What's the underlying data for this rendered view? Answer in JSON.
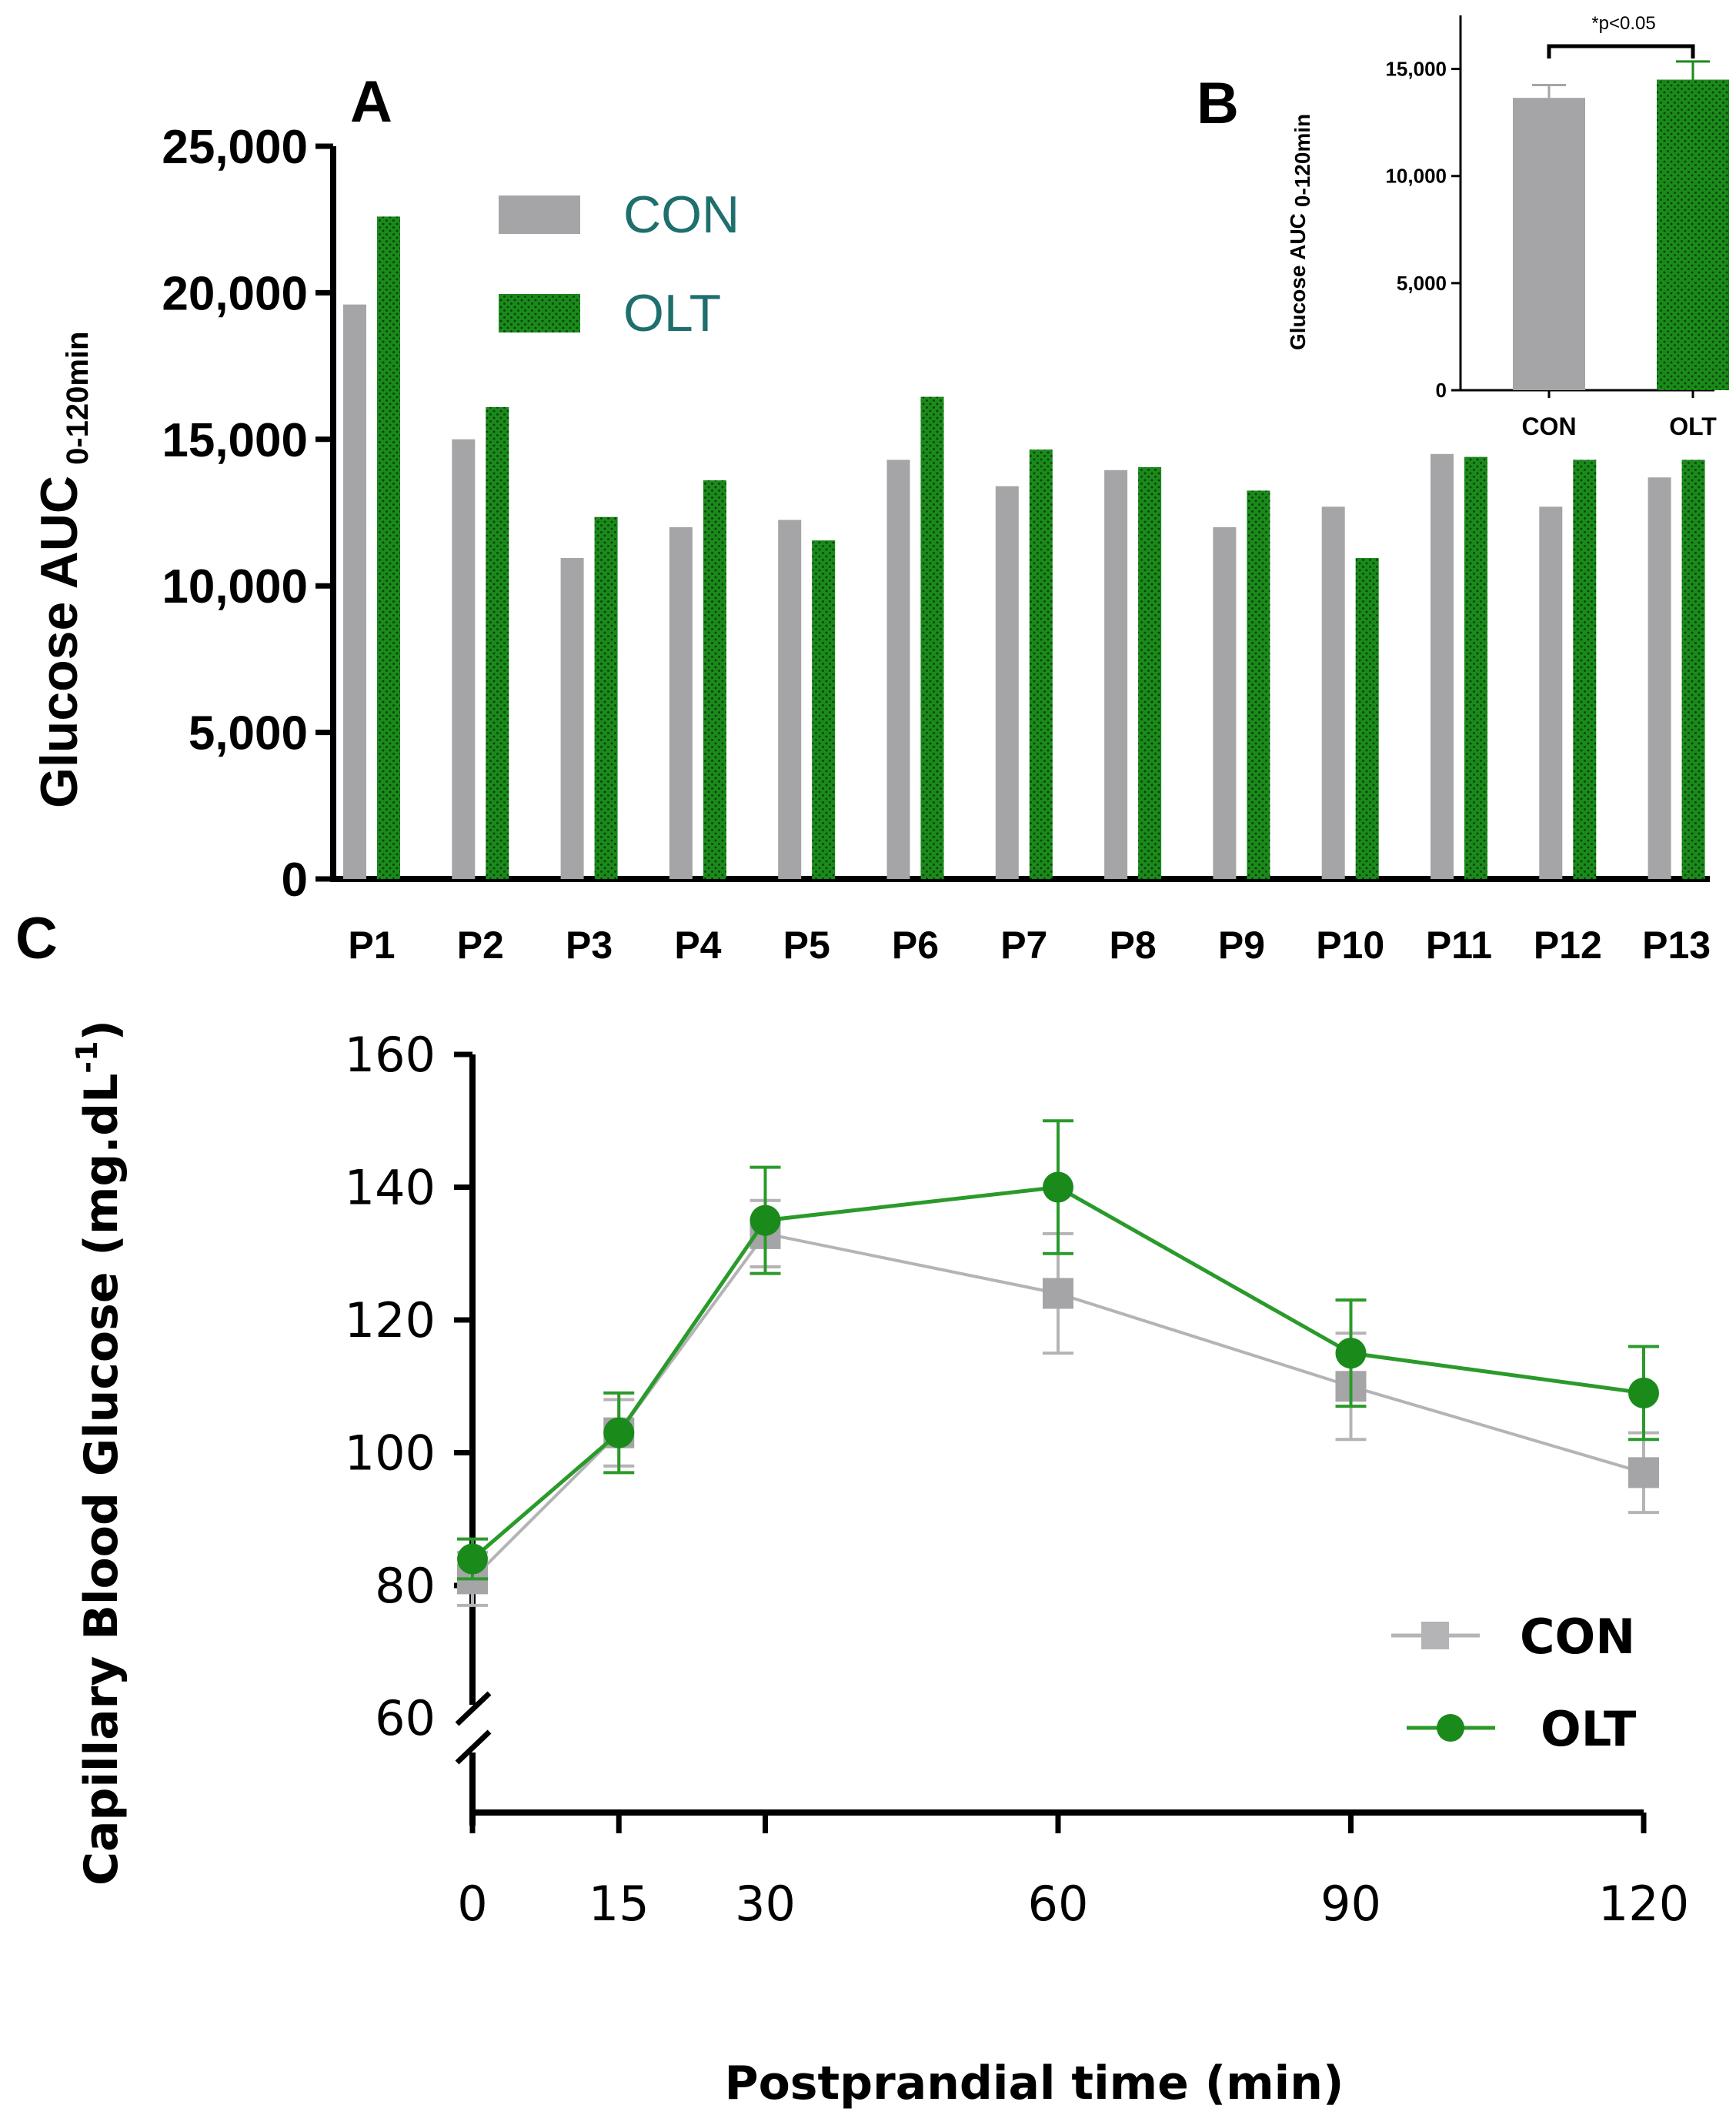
{
  "panel_labels": {
    "a": "A",
    "b": "B",
    "c": "C"
  },
  "colors": {
    "con": "#a5a5a7",
    "olt": "#1a8a1a",
    "olt_dark": "#116b11",
    "axis": "#000000",
    "legend_text": "#1f6f6f",
    "line_con": "#b4b4b6",
    "line_olt": "#2a9a2a"
  },
  "chart_data": [
    {
      "id": "A",
      "type": "bar",
      "ylabel": "Glucose AUC",
      "ylabel_sub": "0-120min",
      "categories": [
        "P1",
        "P2",
        "P3",
        "P4",
        "P5",
        "P6",
        "P7",
        "P8",
        "P9",
        "P10",
        "P11",
        "P12",
        "P13"
      ],
      "series": [
        {
          "name": "CON",
          "values": [
            19600,
            15000,
            10950,
            12000,
            12250,
            14300,
            13400,
            13950,
            12000,
            12700,
            14500,
            12700,
            13700
          ]
        },
        {
          "name": "OLT",
          "values": [
            22600,
            16100,
            12350,
            13600,
            11550,
            16450,
            14650,
            14050,
            13250,
            10950,
            14400,
            14300,
            14300
          ]
        }
      ],
      "ylim": [
        0,
        25000
      ],
      "yticks": [
        0,
        5000,
        10000,
        15000,
        20000,
        25000
      ],
      "ytick_labels": [
        "0",
        "5,000",
        "10,000",
        "15,000",
        "20,000",
        "25,000"
      ],
      "legend": [
        "CON",
        "OLT"
      ]
    },
    {
      "id": "B",
      "type": "bar",
      "ylabel": "Glucose  AUC",
      "ylabel_sub": "0-120min",
      "categories": [
        "CON",
        "OLT"
      ],
      "values": [
        13650,
        14500
      ],
      "errors": [
        600,
        850
      ],
      "ylim": [
        0,
        17500
      ],
      "yticks": [
        0,
        5000,
        10000,
        15000
      ],
      "ytick_labels": [
        "0",
        "5,000",
        "10,000",
        "15,000"
      ],
      "annotation": "*p<0.05"
    },
    {
      "id": "C",
      "type": "line",
      "xlabel": "Postprandial time (min)",
      "ylabel": "Capillary Blood Glucose (mg.dL",
      "ylabel_sup": "-1",
      "ylabel_close": ")",
      "x": [
        0,
        15,
        30,
        60,
        90,
        120
      ],
      "xtick_labels": [
        "0",
        "15",
        "30",
        "60",
        "90",
        "120"
      ],
      "series": [
        {
          "name": "CON",
          "marker": "square",
          "values": [
            81,
            103,
            133,
            124,
            110,
            97
          ],
          "errors": [
            4,
            5,
            5,
            9,
            8,
            6
          ]
        },
        {
          "name": "OLT",
          "marker": "circle",
          "values": [
            84,
            103,
            135,
            140,
            115,
            109
          ],
          "errors": [
            3,
            6,
            8,
            10,
            8,
            7
          ]
        }
      ],
      "ylim": [
        60,
        160
      ],
      "yticks": [
        60,
        80,
        100,
        120,
        140,
        160
      ],
      "ytick_labels": [
        "60",
        "80",
        "100",
        "120",
        "140",
        "160"
      ],
      "axis_break": true,
      "legend": [
        "CON",
        "OLT"
      ]
    }
  ]
}
